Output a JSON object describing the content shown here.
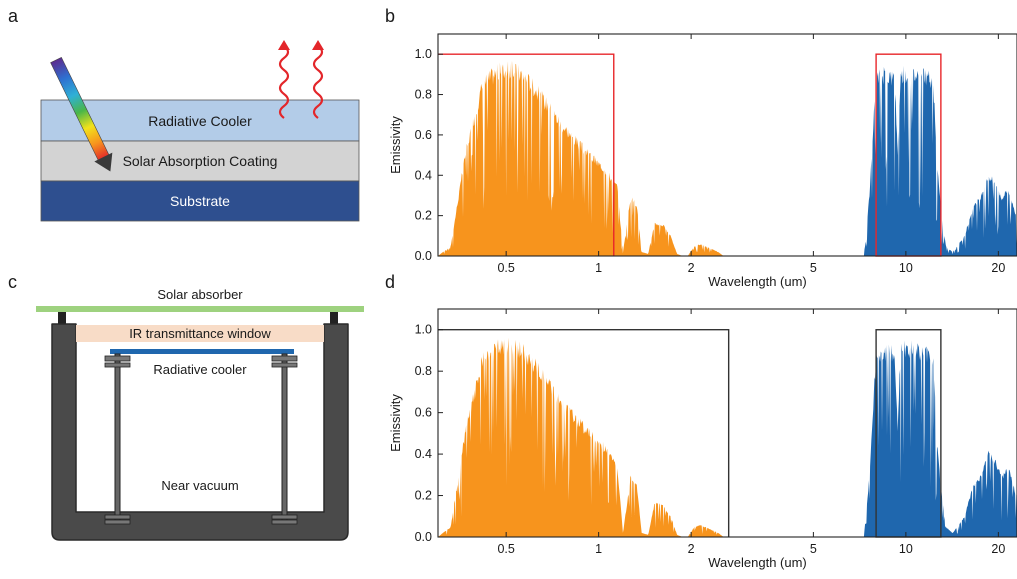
{
  "panels": {
    "a": {
      "letter": "a",
      "layers": {
        "cooler": "Radiative Cooler",
        "coating": "Solar Absorption Coating",
        "substrate": "Substrate"
      }
    },
    "b": {
      "letter": "b"
    },
    "c": {
      "letter": "c",
      "labels": {
        "absorber": "Solar absorber",
        "window": "IR transmittance window",
        "cooler": "Radiative cooler",
        "vacuum": "Near vacuum"
      }
    },
    "d": {
      "letter": "d"
    }
  },
  "colors": {
    "solar_fill": "#F7941D",
    "atmos_fill": "#1F67AE",
    "box_b": "#E8262A",
    "box_d": "#333333",
    "cooler_layer": "#B3CCE8",
    "coating_layer": "#D3D3D3",
    "substrate_layer": "#2E4F8F",
    "absorber_plate": "#9ED27F",
    "window": "#F8DCC7",
    "chamber": "#4A4A4A"
  },
  "chart_data": [
    {
      "panel": "b",
      "type": "area",
      "xscale": "log",
      "xlim": [
        0.3,
        23
      ],
      "ylim": [
        0,
        1.1
      ],
      "xlabel": "Wavelength (um)",
      "ylabel": "Emissivity",
      "xticks": [
        0.5,
        1,
        2,
        5,
        10,
        20
      ],
      "xtick_labels": [
        "0.5",
        "1",
        "2",
        "5",
        "10",
        "20"
      ],
      "yticks": [
        0.0,
        0.2,
        0.4,
        0.6,
        0.8,
        1.0
      ],
      "ytick_labels": [
        "0.0",
        "0.2",
        "0.4",
        "0.6",
        "0.8",
        "1.0"
      ],
      "solar_spectrum_envelope": {
        "x": [
          0.3,
          0.33,
          0.37,
          0.42,
          0.47,
          0.52,
          0.56,
          0.6,
          0.65,
          0.7,
          0.76,
          0.82,
          0.9,
          0.98,
          1.05,
          1.1,
          1.15,
          1.2,
          1.27,
          1.33,
          1.38,
          1.45,
          1.52,
          1.62,
          1.72,
          1.8,
          1.88,
          1.95,
          2.05,
          2.15,
          2.3,
          2.45,
          2.55
        ],
        "y": [
          0.0,
          0.05,
          0.55,
          0.9,
          0.96,
          0.97,
          0.95,
          0.9,
          0.83,
          0.76,
          0.68,
          0.62,
          0.55,
          0.49,
          0.45,
          0.4,
          0.36,
          0.02,
          0.3,
          0.27,
          0.02,
          0.01,
          0.17,
          0.16,
          0.1,
          0.01,
          0.0,
          0.0,
          0.05,
          0.06,
          0.04,
          0.02,
          0.0
        ]
      },
      "atmospheric_window_envelope": {
        "x": [
          7.3,
          7.6,
          8.0,
          8.3,
          8.8,
          9.2,
          9.4,
          9.6,
          9.9,
          10.5,
          11.2,
          11.8,
          12.3,
          12.6,
          13.0,
          13.5,
          14.2,
          15.5,
          16.5,
          17.5,
          18.5,
          19.5,
          20.5,
          21.5,
          23.0
        ],
        "y": [
          0.0,
          0.3,
          0.92,
          0.94,
          0.94,
          0.92,
          0.55,
          0.93,
          0.95,
          0.95,
          0.94,
          0.93,
          0.88,
          0.5,
          0.25,
          0.05,
          0.02,
          0.1,
          0.25,
          0.3,
          0.42,
          0.38,
          0.3,
          0.35,
          0.2
        ]
      },
      "box_solar": {
        "x": [
          0.3,
          1.12
        ],
        "y": [
          0,
          1.0
        ]
      },
      "box_window": {
        "x": [
          8.0,
          13.0
        ],
        "y": [
          0,
          1.0
        ]
      }
    },
    {
      "panel": "d",
      "type": "area",
      "xscale": "log",
      "xlim": [
        0.3,
        23
      ],
      "ylim": [
        0,
        1.1
      ],
      "xlabel": "Wavelength (um)",
      "ylabel": "Emissivity",
      "xticks": [
        0.5,
        1,
        2,
        5,
        10,
        20
      ],
      "xtick_labels": [
        "0.5",
        "1",
        "2",
        "5",
        "10",
        "20"
      ],
      "yticks": [
        0.0,
        0.2,
        0.4,
        0.6,
        0.8,
        1.0
      ],
      "ytick_labels": [
        "0.0",
        "0.2",
        "0.4",
        "0.6",
        "0.8",
        "1.0"
      ],
      "solar_spectrum_envelope": {
        "x": [
          0.3,
          0.33,
          0.37,
          0.42,
          0.47,
          0.52,
          0.56,
          0.6,
          0.65,
          0.7,
          0.76,
          0.82,
          0.9,
          0.98,
          1.05,
          1.1,
          1.15,
          1.2,
          1.27,
          1.33,
          1.38,
          1.45,
          1.52,
          1.62,
          1.72,
          1.8,
          1.88,
          1.95,
          2.05,
          2.15,
          2.3,
          2.45,
          2.55
        ],
        "y": [
          0.0,
          0.05,
          0.55,
          0.9,
          0.96,
          0.97,
          0.95,
          0.9,
          0.83,
          0.76,
          0.68,
          0.62,
          0.55,
          0.49,
          0.45,
          0.4,
          0.36,
          0.02,
          0.3,
          0.27,
          0.02,
          0.01,
          0.17,
          0.16,
          0.1,
          0.01,
          0.0,
          0.0,
          0.05,
          0.06,
          0.04,
          0.02,
          0.0
        ]
      },
      "atmospheric_window_envelope": {
        "x": [
          7.3,
          7.6,
          8.0,
          8.3,
          8.8,
          9.2,
          9.4,
          9.6,
          9.9,
          10.5,
          11.2,
          11.8,
          12.3,
          12.6,
          13.0,
          13.5,
          14.2,
          15.5,
          16.5,
          17.5,
          18.5,
          19.5,
          20.5,
          21.5,
          23.0
        ],
        "y": [
          0.0,
          0.3,
          0.92,
          0.94,
          0.94,
          0.92,
          0.55,
          0.93,
          0.95,
          0.95,
          0.94,
          0.93,
          0.88,
          0.5,
          0.25,
          0.05,
          0.02,
          0.1,
          0.25,
          0.3,
          0.42,
          0.38,
          0.3,
          0.35,
          0.2
        ]
      },
      "box_solar": {
        "x": [
          0.3,
          2.65
        ],
        "y": [
          0,
          1.0
        ]
      },
      "box_window": {
        "x": [
          8.0,
          13.0
        ],
        "y": [
          0,
          1.0
        ]
      }
    }
  ]
}
